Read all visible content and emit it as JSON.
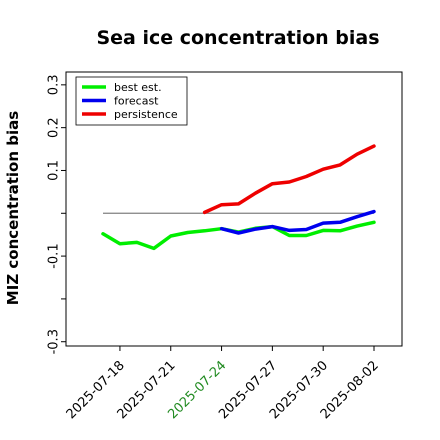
{
  "chart_data": {
    "type": "line",
    "title": "Sea ice concentration bias",
    "xlabel": "",
    "ylabel": "MIZ concentration bias",
    "ylim": [
      -0.31,
      0.33
    ],
    "yticks": [
      -0.3,
      -0.2,
      -0.1,
      0,
      0.1,
      0.2,
      0.3
    ],
    "ytick_labels": [
      "-0.3",
      "",
      "-0.1",
      "",
      "0.1",
      "0.2",
      "0.3"
    ],
    "x_dates": [
      "2025-07-17",
      "2025-07-18",
      "2025-07-19",
      "2025-07-20",
      "2025-07-21",
      "2025-07-22",
      "2025-07-23",
      "2025-07-24",
      "2025-07-25",
      "2025-07-26",
      "2025-07-27",
      "2025-07-28",
      "2025-07-29",
      "2025-07-30",
      "2025-07-31",
      "2025-08-01",
      "2025-08-02"
    ],
    "xticks": [
      "2025-07-18",
      "2025-07-21",
      "2025-07-24",
      "2025-07-27",
      "2025-07-30",
      "2025-08-02"
    ],
    "highlight_tick": "2025-07-24",
    "highlight_color": "#228B22",
    "zero_line": {
      "start": "2025-07-17",
      "end": "2025-08-02",
      "value": 0,
      "color": "#808080"
    },
    "series": [
      {
        "name": "best est.",
        "color": "#00ee00",
        "x": [
          "2025-07-17",
          "2025-07-18",
          "2025-07-19",
          "2025-07-20",
          "2025-07-21",
          "2025-07-22",
          "2025-07-23",
          "2025-07-24",
          "2025-07-25",
          "2025-07-26",
          "2025-07-27",
          "2025-07-28",
          "2025-07-29",
          "2025-07-30",
          "2025-07-31",
          "2025-08-01",
          "2025-08-02"
        ],
        "values": [
          -0.048,
          -0.071,
          -0.068,
          -0.082,
          -0.053,
          -0.045,
          -0.041,
          -0.036,
          -0.044,
          -0.035,
          -0.031,
          -0.052,
          -0.052,
          -0.04,
          -0.041,
          -0.03,
          -0.021
        ]
      },
      {
        "name": "forecast",
        "color": "#0000ee",
        "x": [
          "2025-07-24",
          "2025-07-25",
          "2025-07-26",
          "2025-07-27",
          "2025-07-28",
          "2025-07-29",
          "2025-07-30",
          "2025-07-31",
          "2025-08-01",
          "2025-08-02"
        ],
        "values": [
          -0.036,
          -0.046,
          -0.037,
          -0.031,
          -0.04,
          -0.038,
          -0.023,
          -0.021,
          -0.008,
          0.004
        ]
      },
      {
        "name": "persistence",
        "color": "#ee0000",
        "x": [
          "2025-07-23",
          "2025-07-24",
          "2025-07-25",
          "2025-07-26",
          "2025-07-27",
          "2025-07-28",
          "2025-07-29",
          "2025-07-30",
          "2025-07-31",
          "2025-08-01",
          "2025-08-02"
        ],
        "values": [
          0.002,
          0.02,
          0.022,
          0.047,
          0.069,
          0.073,
          0.086,
          0.103,
          0.113,
          0.138,
          0.157
        ]
      }
    ],
    "legend": {
      "position": "top-left"
    },
    "grid": false
  }
}
